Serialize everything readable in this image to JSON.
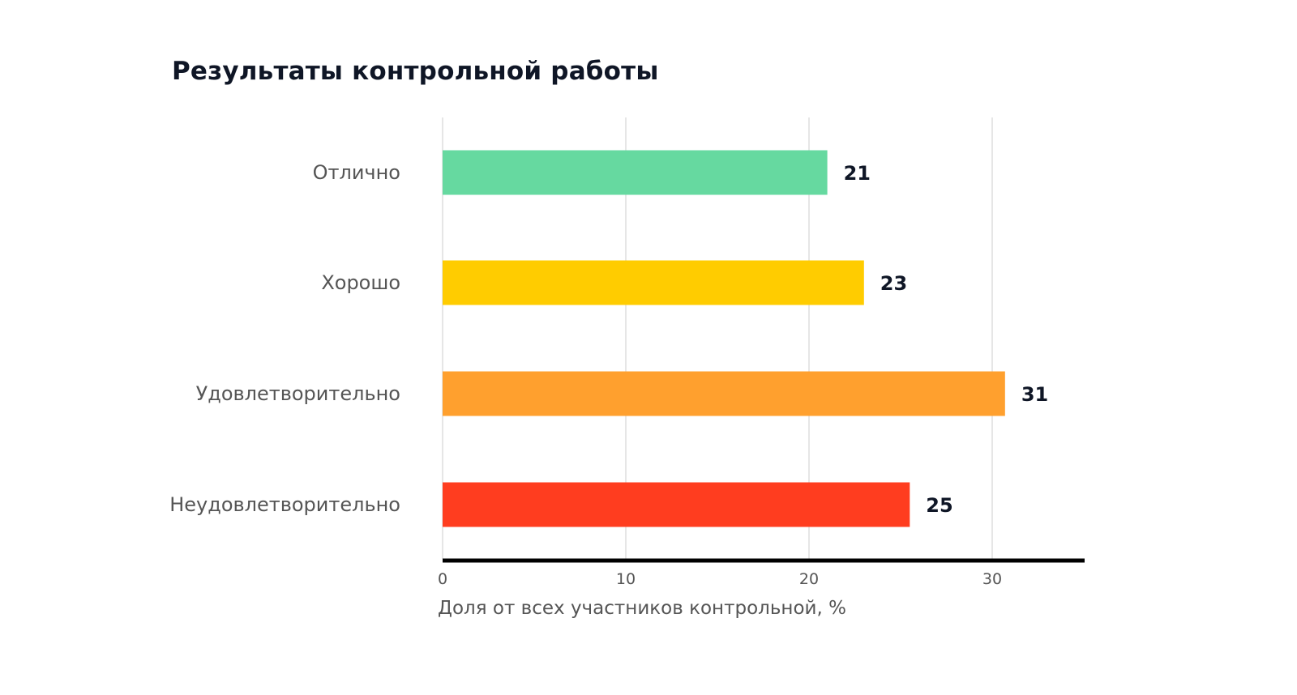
{
  "chart_data": {
    "type": "bar",
    "orientation": "horizontal",
    "title": "Результаты контрольной работы",
    "xlabel": "Доля от всех участников контрольной, %",
    "ylabel": "",
    "categories": [
      "Отлично",
      "Хорошо",
      "Удовлетворительно",
      "Неудовлетворительно"
    ],
    "values": [
      21,
      23,
      30.7,
      25.5
    ],
    "data_labels": [
      "21",
      "23",
      "31",
      "25"
    ],
    "colors": [
      "#66d9a0",
      "#ffcc00",
      "#ffa02e",
      "#ff3d1f"
    ],
    "xlim": [
      0,
      35
    ],
    "xticks": [
      0,
      10,
      20,
      30
    ],
    "xtick_labels": [
      "0",
      "10",
      "20",
      "30"
    ],
    "grid": "vertical",
    "legend": "none"
  }
}
